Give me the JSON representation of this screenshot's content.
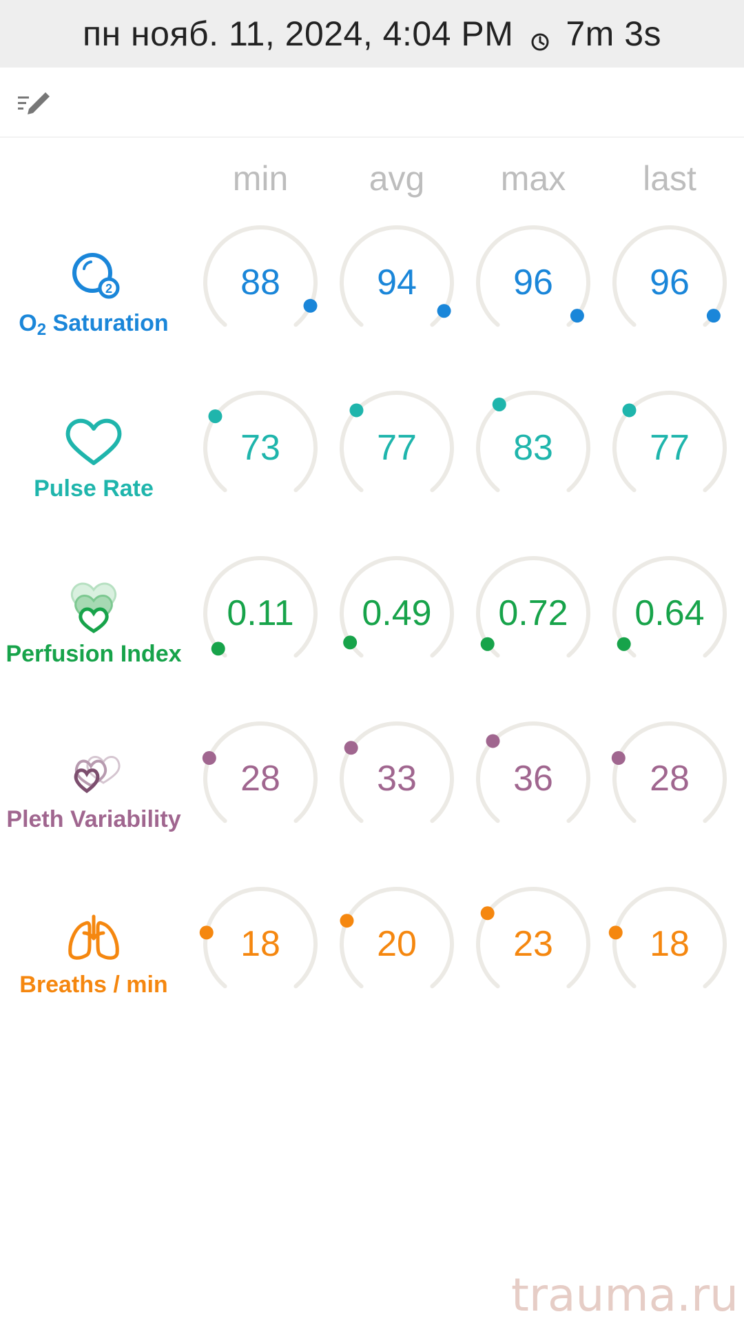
{
  "header": {
    "datetime": "пн нояб. 11, 2024, 4:04 PM",
    "clock_icon": "clock-icon",
    "duration": "7m 3s"
  },
  "toolbar": {
    "edit_icon": "edit-list-icon"
  },
  "columns": [
    "min",
    "avg",
    "max",
    "last"
  ],
  "gauge_track_color": "#eceae5",
  "metrics": [
    {
      "id": "o2-saturation",
      "label_main": "O",
      "label_sub": "2",
      "label_rest": " Saturation",
      "icon": "o2-bubble-icon",
      "color": "#1a86d9",
      "values": [
        "88",
        "94",
        "96",
        "96"
      ],
      "levels": [
        0.88,
        0.94,
        0.96,
        0.96
      ],
      "dot_angles": [
        115,
        121,
        127,
        127
      ]
    },
    {
      "id": "pulse-rate",
      "label": "Pulse Rate",
      "icon": "heart-outline-icon",
      "color": "#1fb5ac",
      "values": [
        "73",
        "77",
        "83",
        "77"
      ],
      "levels": [
        0.73,
        0.77,
        0.83,
        0.77
      ],
      "dot_angles": [
        -55,
        -47,
        -38,
        -47
      ]
    },
    {
      "id": "perfusion-index",
      "label": "Perfusion Index",
      "icon": "layered-hearts-icon",
      "color": "#17a34a",
      "values": [
        "0.11",
        "0.49",
        "0.72",
        "0.64"
      ],
      "dot_angles": [
        -130,
        -122,
        -124,
        -124
      ]
    },
    {
      "id": "pleth-variability",
      "label": "Pleth Variability",
      "icon": "pleth-hearts-icon",
      "color": "#a0668f",
      "values": [
        "28",
        "33",
        "36",
        "28"
      ],
      "dot_angles": [
        -68,
        -56,
        -47,
        -68
      ]
    },
    {
      "id": "breaths-per-min",
      "label": "Breaths / min",
      "icon": "lungs-icon",
      "color": "#f5870f",
      "values": [
        "18",
        "20",
        "23",
        "18"
      ],
      "dot_angles": [
        -78,
        -65,
        -56,
        -78
      ]
    }
  ],
  "watermark": "trauma.ru"
}
